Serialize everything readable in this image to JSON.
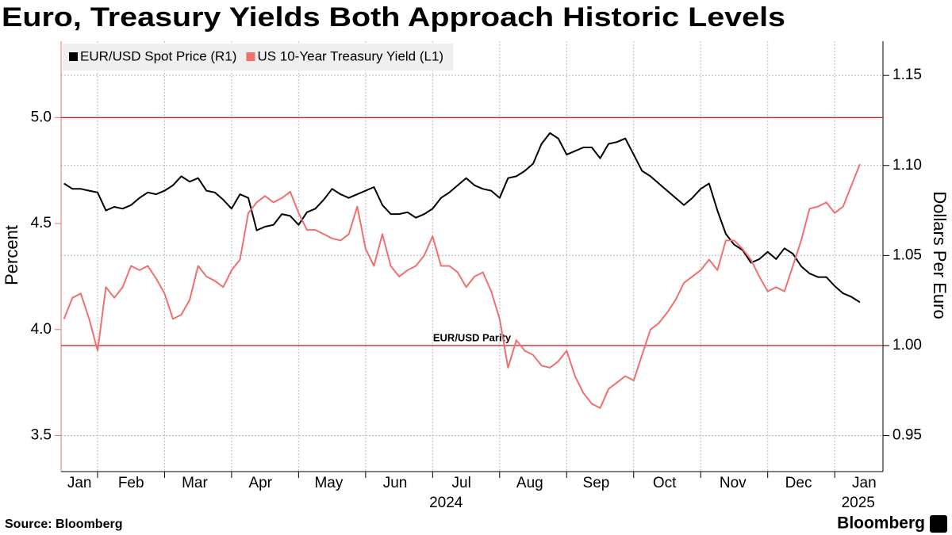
{
  "chart_data": {
    "type": "line",
    "title": "Euro, Treasury Yields Both Approach Historic Levels",
    "ylabel": "Percent",
    "y2label": "Dollars Per Euro",
    "source": "Source: Bloomberg",
    "brand": "Bloomberg",
    "legend": "top-left",
    "grid": true,
    "xlim": [
      0.456,
      12.72
    ],
    "ylim": [
      3.33,
      5.36
    ],
    "y2lim": [
      0.93,
      1.169
    ],
    "yticks": [
      3.5,
      {
        "value": 4,
        "label": "4.0"
      },
      4.5,
      {
        "value": 5,
        "label": "5.0"
      }
    ],
    "y2ticks": [
      0.95,
      {
        "value": 1,
        "label": "1.00"
      },
      1.05,
      {
        "value": 1.1,
        "label": "1.10"
      },
      1.15
    ],
    "xticks": [
      {
        "value": 0.73,
        "label": "Jan"
      },
      {
        "value": 1.5,
        "label": "Feb"
      },
      {
        "value": 2.45,
        "label": "Mar"
      },
      {
        "value": 3.43,
        "label": "Apr"
      },
      {
        "value": 4.45,
        "label": "May"
      },
      {
        "value": 5.44,
        "label": "Jun"
      },
      {
        "value": 6.43,
        "label": "Jul"
      },
      {
        "value": 7.45,
        "label": "Aug"
      },
      {
        "value": 8.44,
        "label": "Sep"
      },
      {
        "value": 9.46,
        "label": "Oct"
      },
      {
        "value": 10.48,
        "label": "Nov"
      },
      {
        "value": 11.46,
        "label": "Dec"
      },
      {
        "value": 12.44,
        "label": "Jan"
      }
    ],
    "xgrid": [
      1,
      2,
      3,
      4,
      5,
      6,
      7,
      8,
      9,
      10,
      11,
      12
    ],
    "year_labels": [
      {
        "value": 6.2,
        "label": "2024"
      },
      {
        "value": 12.35,
        "label": "2025"
      }
    ],
    "reference_lines": [
      {
        "axis": "y",
        "value": 5,
        "color": "#cc0000"
      },
      {
        "axis": "y2",
        "value": 1,
        "label": "EUR/USD Parity",
        "color": "#cc0000"
      }
    ],
    "x": [
      0.5,
      0.625,
      0.75,
      0.875,
      1,
      1.125,
      1.25,
      1.375,
      1.5,
      1.625,
      1.75,
      1.875,
      2,
      2.125,
      2.25,
      2.375,
      2.5,
      2.625,
      2.75,
      2.875,
      3,
      3.125,
      3.25,
      3.375,
      3.5,
      3.625,
      3.75,
      3.875,
      4,
      4.125,
      4.25,
      4.375,
      4.5,
      4.625,
      4.75,
      4.875,
      5,
      5.125,
      5.25,
      5.375,
      5.5,
      5.625,
      5.75,
      5.875,
      6,
      6.125,
      6.25,
      6.375,
      6.5,
      6.625,
      6.75,
      6.875,
      7,
      7.125,
      7.25,
      7.375,
      7.5,
      7.625,
      7.75,
      7.875,
      8,
      8.125,
      8.25,
      8.375,
      8.5,
      8.625,
      8.75,
      8.875,
      9,
      9.125,
      9.25,
      9.375,
      9.5,
      9.625,
      9.75,
      9.875,
      10,
      10.125,
      10.25,
      10.375,
      10.5,
      10.625,
      10.75,
      10.875,
      11,
      11.125,
      11.25,
      11.375,
      11.5,
      11.625,
      11.75,
      11.875,
      12,
      12.125,
      12.25,
      12.375
    ],
    "series": [
      {
        "name": "EUR/USD Spot Price (R1)",
        "color": "#000000",
        "axis": "y2",
        "values": [
          1.09,
          1.087,
          1.087,
          1.086,
          1.085,
          1.075,
          1.077,
          1.076,
          1.078,
          1.082,
          1.085,
          1.084,
          1.086,
          1.089,
          1.094,
          1.091,
          1.093,
          1.086,
          1.085,
          1.081,
          1.076,
          1.084,
          1.082,
          1.064,
          1.066,
          1.067,
          1.073,
          1.072,
          1.067,
          1.074,
          1.076,
          1.081,
          1.087,
          1.084,
          1.082,
          1.084,
          1.086,
          1.088,
          1.078,
          1.073,
          1.073,
          1.074,
          1.071,
          1.073,
          1.076,
          1.082,
          1.085,
          1.089,
          1.093,
          1.089,
          1.087,
          1.086,
          1.082,
          1.093,
          1.094,
          1.097,
          1.101,
          1.112,
          1.118,
          1.115,
          1.106,
          1.108,
          1.11,
          1.11,
          1.104,
          1.112,
          1.113,
          1.115,
          1.106,
          1.097,
          1.094,
          1.09,
          1.086,
          1.082,
          1.078,
          1.082,
          1.087,
          1.09,
          1.075,
          1.062,
          1.056,
          1.053,
          1.046,
          1.048,
          1.052,
          1.048,
          1.054,
          1.051,
          1.044,
          1.04,
          1.038,
          1.038,
          1.033,
          1.029,
          1.027,
          1.024
        ]
      },
      {
        "name": "US 10-Year Treasury Yield (L1)",
        "color": "#f07070",
        "values": [
          4.05,
          4.15,
          4.17,
          4.05,
          3.9,
          4.2,
          4.15,
          4.2,
          4.3,
          4.28,
          4.3,
          4.24,
          4.17,
          4.05,
          4.07,
          4.14,
          4.3,
          4.25,
          4.23,
          4.2,
          4.28,
          4.33,
          4.55,
          4.6,
          4.63,
          4.6,
          4.62,
          4.65,
          4.55,
          4.47,
          4.47,
          4.45,
          4.43,
          4.42,
          4.45,
          4.58,
          4.38,
          4.3,
          4.45,
          4.3,
          4.25,
          4.28,
          4.3,
          4.35,
          4.44,
          4.3,
          4.3,
          4.27,
          4.2,
          4.25,
          4.27,
          4.18,
          4.05,
          3.82,
          3.95,
          3.9,
          3.88,
          3.83,
          3.82,
          3.85,
          3.9,
          3.78,
          3.7,
          3.65,
          3.63,
          3.72,
          3.75,
          3.78,
          3.76,
          3.88,
          4.0,
          4.03,
          4.08,
          4.14,
          4.22,
          4.25,
          4.28,
          4.33,
          4.28,
          4.42,
          4.42,
          4.38,
          4.33,
          4.25,
          4.18,
          4.2,
          4.18,
          4.3,
          4.42,
          4.57,
          4.58,
          4.6,
          4.55,
          4.58,
          4.68,
          4.78
        ]
      }
    ]
  }
}
